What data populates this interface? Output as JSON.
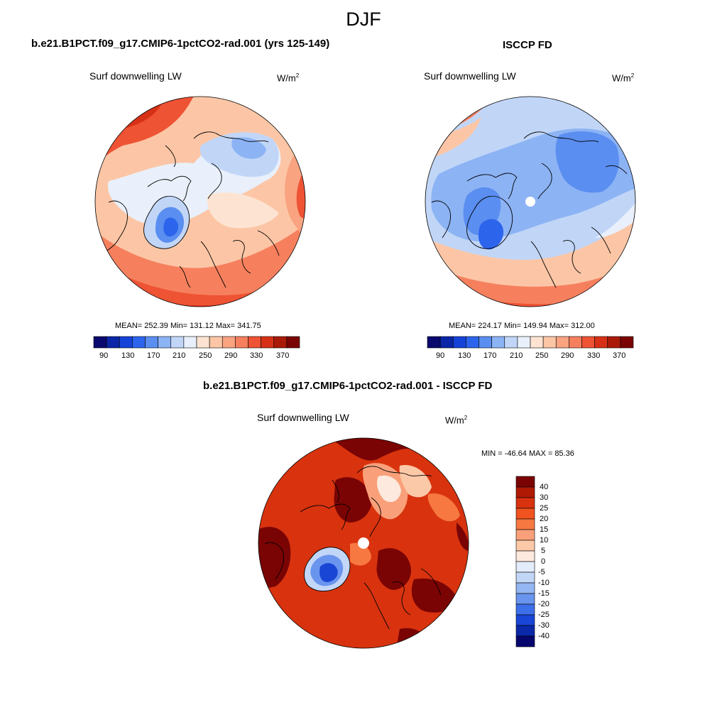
{
  "page": {
    "title": "DJF",
    "colors": {
      "coast": "#000000",
      "background": "#ffffff"
    }
  },
  "panels": [
    {
      "id": "model",
      "title": "b.e21.B1PCT.f09_g17.CMIP6-1pctCO2-rad.001 (yrs 125-149)",
      "variable": "Surf downwelling LW",
      "units_base": "W/m",
      "units_exp": "2",
      "stats": "MEAN= 252.39  Min= 131.12  Max= 341.75",
      "colorbar": {
        "labels": [
          "90",
          "130",
          "170",
          "210",
          "250",
          "290",
          "330",
          "370"
        ],
        "colors": [
          "#0a0a6e",
          "#0b26a6",
          "#1543d8",
          "#2c64ec",
          "#5a8ef0",
          "#8cb3f4",
          "#c1d6f7",
          "#e9f0fb",
          "#fde4d2",
          "#fcc6a6",
          "#f9a381",
          "#f6805e",
          "#ee5334",
          "#d63116",
          "#aa1a08",
          "#7a0404"
        ]
      }
    },
    {
      "id": "obs",
      "title": "ISCCP FD",
      "variable": "Surf downwelling LW",
      "units_base": "W/m",
      "units_exp": "2",
      "stats": "MEAN= 224.17  Min= 149.94  Max= 312.00",
      "colorbar": {
        "labels": [
          "90",
          "130",
          "170",
          "210",
          "250",
          "290",
          "330",
          "370"
        ],
        "colors": [
          "#0a0a6e",
          "#0b26a6",
          "#1543d8",
          "#2c64ec",
          "#5a8ef0",
          "#8cb3f4",
          "#c1d6f7",
          "#e9f0fb",
          "#fde4d2",
          "#fcc6a6",
          "#f9a381",
          "#f6805e",
          "#ee5334",
          "#d63116",
          "#aa1a08",
          "#7a0404"
        ]
      }
    },
    {
      "id": "diff",
      "title": "b.e21.B1PCT.f09_g17.CMIP6-1pctCO2-rad.001 - ISCCP FD",
      "variable": "Surf downwelling LW",
      "units_base": "W/m",
      "units_exp": "2",
      "stats": "MIN = -46.64 MAX =  85.36",
      "colorbar": {
        "labels": [
          "40",
          "30",
          "25",
          "20",
          "15",
          "10",
          "5",
          "0",
          "-5",
          "-10",
          "-15",
          "-20",
          "-25",
          "-30",
          "-40"
        ],
        "colors": [
          "#7a0404",
          "#b01a05",
          "#d8330e",
          "#f0531f",
          "#f77840",
          "#f9a07a",
          "#fcc9a8",
          "#fde9de",
          "#e3ecfb",
          "#c2d6f7",
          "#94b6f2",
          "#6a95ee",
          "#3d6fe9",
          "#1a46d6",
          "#0a28a8",
          "#06066e"
        ]
      }
    }
  ]
}
